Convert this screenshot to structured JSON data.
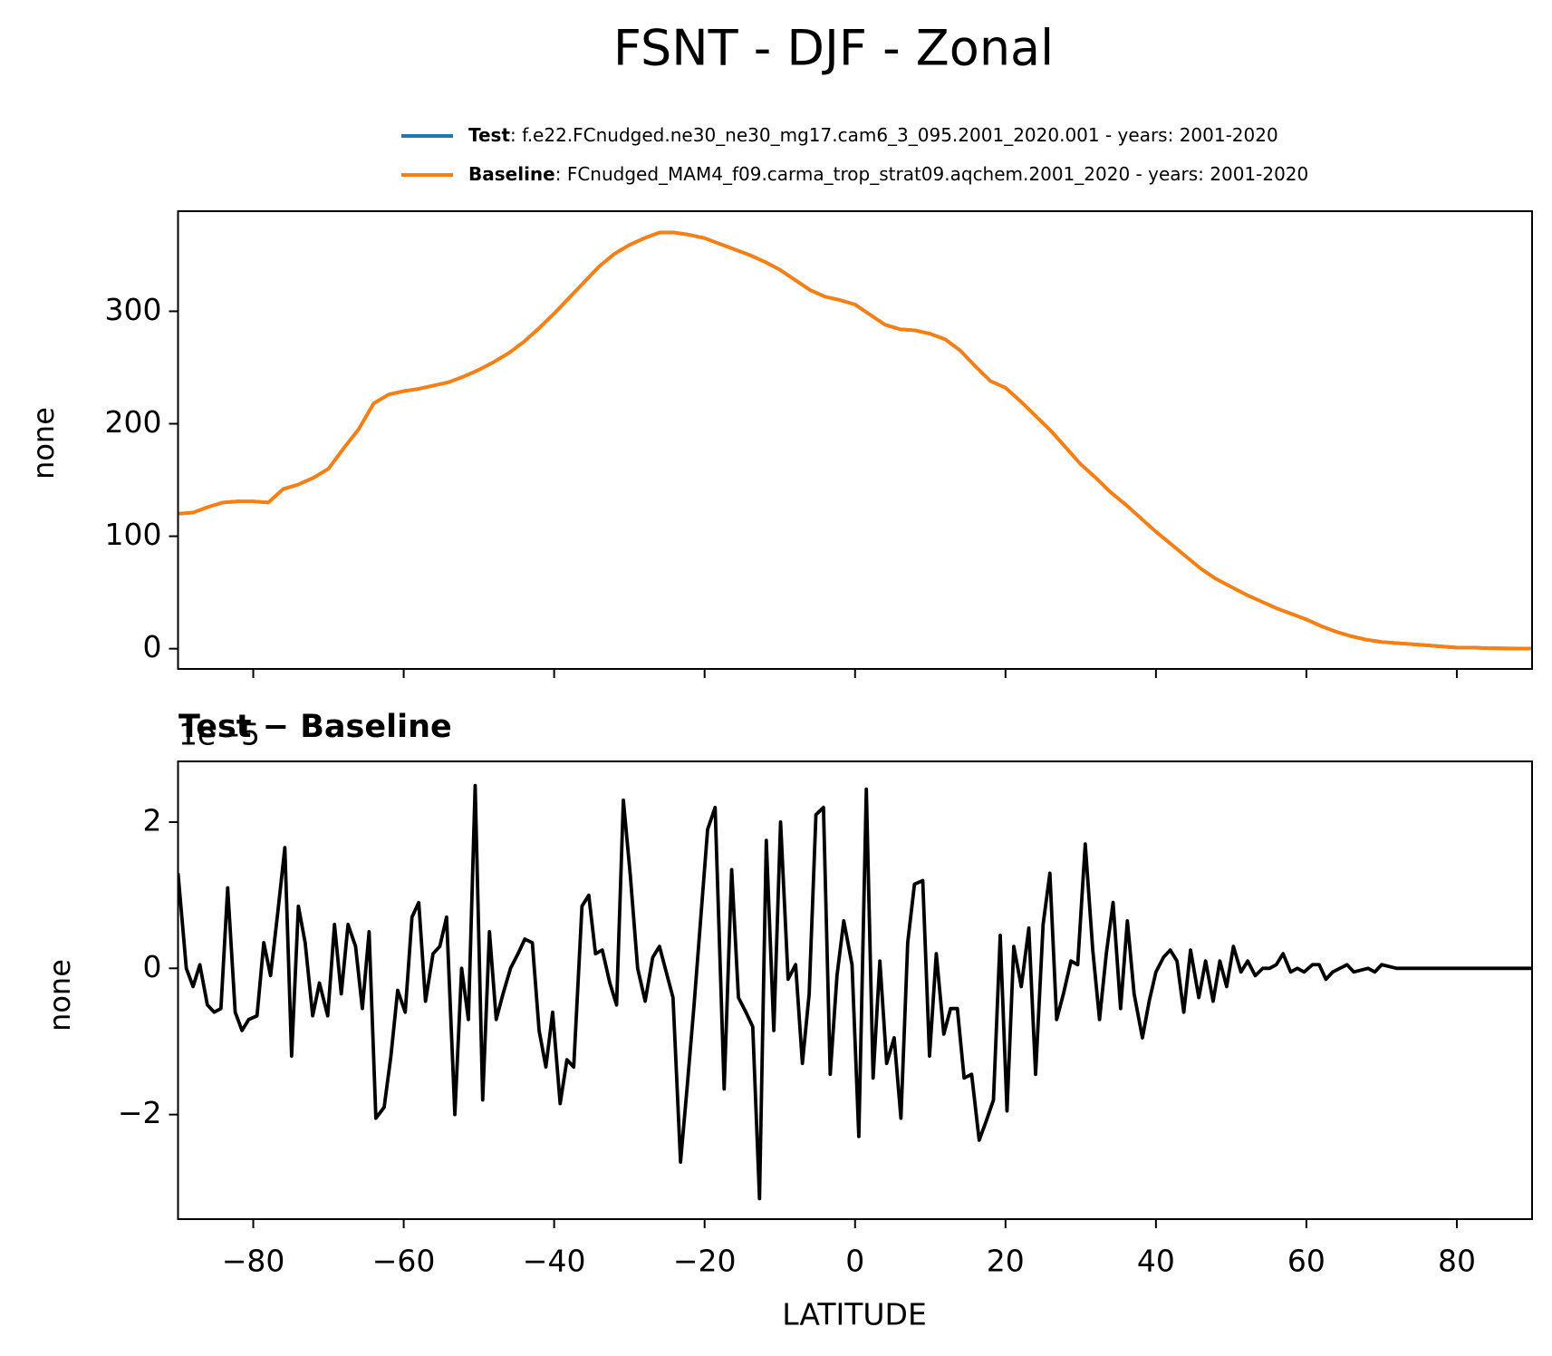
{
  "chart_data": [
    {
      "type": "line",
      "title": "FSNT - DJF - Zonal",
      "ylabel": "none",
      "xlim": [
        -90,
        90
      ],
      "xticks": [
        -80,
        -60,
        -40,
        -20,
        0,
        20,
        40,
        60,
        80
      ],
      "ylim": [
        -18,
        389
      ],
      "yticks": [
        0,
        100,
        200,
        300
      ],
      "x": [
        -90,
        -88,
        -86,
        -84,
        -82,
        -80,
        -78,
        -76,
        -74,
        -72,
        -70,
        -68,
        -66,
        -64,
        -62,
        -60,
        -58,
        -56,
        -54,
        -52,
        -50,
        -48,
        -46,
        -44,
        -42,
        -40,
        -38,
        -36,
        -34,
        -32,
        -30,
        -28,
        -26,
        -24,
        -22,
        -20,
        -18,
        -16,
        -14,
        -12,
        -10,
        -8,
        -6,
        -4,
        -2,
        0,
        2,
        4,
        6,
        8,
        10,
        12,
        14,
        16,
        18,
        20,
        22,
        24,
        26,
        28,
        30,
        32,
        34,
        36,
        38,
        40,
        42,
        44,
        46,
        48,
        50,
        52,
        54,
        56,
        58,
        60,
        62,
        64,
        66,
        68,
        70,
        72,
        74,
        76,
        78,
        80,
        82,
        84,
        86,
        88,
        90
      ],
      "series": [
        {
          "name": "Test",
          "description": ": f.e22.FCnudged.ne30_ne30_mg17.cam6_3_095.2001_2020.001 - years: 2001-2020",
          "color": "#1f77b4",
          "values": [
            120,
            121,
            126,
            130,
            131,
            131,
            130,
            142,
            146,
            152,
            160,
            178,
            195,
            218,
            226,
            229,
            231,
            234,
            237,
            242,
            248,
            255,
            263,
            273,
            285,
            298,
            312,
            326,
            340,
            351,
            359,
            365,
            370,
            370,
            368,
            365,
            360,
            355,
            350,
            344,
            337,
            328,
            319,
            313,
            310,
            306,
            297,
            288,
            284,
            283,
            280,
            275,
            265,
            251,
            238,
            232,
            220,
            207,
            194,
            179,
            164,
            152,
            139,
            128,
            116,
            104,
            93,
            82,
            71,
            62,
            55,
            48,
            42,
            36,
            31,
            26,
            20,
            15,
            11,
            8,
            6,
            5,
            4,
            3,
            2,
            1,
            1,
            0.5,
            0.3,
            0.2,
            0.2
          ]
        },
        {
          "name": "Baseline",
          "description": ": FCnudged_MAM4_f09.carma_trop_strat09.aqchem.2001_2020 - years: 2001-2020",
          "color": "#ff7f0e",
          "values": [
            120,
            121,
            126,
            130,
            131,
            131,
            130,
            142,
            146,
            152,
            160,
            178,
            195,
            218,
            226,
            229,
            231,
            234,
            237,
            242,
            248,
            255,
            263,
            273,
            285,
            298,
            312,
            326,
            340,
            351,
            359,
            365,
            370,
            370,
            368,
            365,
            360,
            355,
            350,
            344,
            337,
            328,
            319,
            313,
            310,
            306,
            297,
            288,
            284,
            283,
            280,
            275,
            265,
            251,
            238,
            232,
            220,
            207,
            194,
            179,
            164,
            152,
            139,
            128,
            116,
            104,
            93,
            82,
            71,
            62,
            55,
            48,
            42,
            36,
            31,
            26,
            20,
            15,
            11,
            8,
            6,
            5,
            4,
            3,
            2,
            1,
            1,
            0.5,
            0.3,
            0.2,
            0.2
          ]
        }
      ]
    },
    {
      "type": "line",
      "title": "Test − Baseline",
      "offset_text": "1e−5",
      "ylabel": "none",
      "xlabel": "LATITUDE",
      "xlim": [
        -90,
        90
      ],
      "xticks": [
        {
          "value": -80,
          "label": "−80"
        },
        {
          "value": -60,
          "label": "−60"
        },
        {
          "value": -40,
          "label": "−40"
        },
        {
          "value": -20,
          "label": "−20"
        },
        0,
        20,
        40,
        60,
        80
      ],
      "ylim": [
        -3.43,
        2.83
      ],
      "yticks": [
        {
          "value": -2,
          "label": "−2"
        },
        0,
        2
      ],
      "x": [
        -90,
        -88.9,
        -88.0,
        -87.1,
        -86.1,
        -85.2,
        -84.3,
        -83.4,
        -82.4,
        -81.5,
        -80.6,
        -79.5,
        -78.6,
        -77.7,
        -76.7,
        -75.8,
        -74.9,
        -74.0,
        -73.1,
        -72.1,
        -71.2,
        -70.1,
        -69.2,
        -68.3,
        -67.4,
        -66.4,
        -65.5,
        -64.6,
        -63.7,
        -62.6,
        -61.7,
        -60.8,
        -59.8,
        -58.9,
        -58.0,
        -57.1,
        -56.1,
        -55.2,
        -54.3,
        -53.2,
        -52.3,
        -51.4,
        -50.5,
        -49.5,
        -48.6,
        -47.7,
        -46.8,
        -45.8,
        -44.8,
        -43.9,
        -42.9,
        -42.0,
        -41.1,
        -40.2,
        -39.2,
        -38.3,
        -37.4,
        -36.3,
        -35.4,
        -34.5,
        -33.6,
        -32.6,
        -31.7,
        -30.8,
        -29.9,
        -28.9,
        -27.9,
        -26.9,
        -26.0,
        -25.1,
        -24.2,
        -23.2,
        -22.3,
        -21.4,
        -20.5,
        -19.6,
        -18.6,
        -17.4,
        -16.4,
        -15.5,
        -14.5,
        -13.6,
        -12.7,
        -11.8,
        -10.8,
        -9.9,
        -8.9,
        -7.9,
        -7.0,
        -6.1,
        -5.2,
        -4.2,
        -3.3,
        -2.4,
        -1.5,
        -0.4,
        0.5,
        1.5,
        2.4,
        3.3,
        4.2,
        5.2,
        6.1,
        7.0,
        7.9,
        9.0,
        9.9,
        10.8,
        11.8,
        12.7,
        13.6,
        14.5,
        15.5,
        16.5,
        17.4,
        18.4,
        19.3,
        20.2,
        21.1,
        22.1,
        23.1,
        24.0,
        25.0,
        25.9,
        26.8,
        27.7,
        28.7,
        29.6,
        30.6,
        31.6,
        32.5,
        33.4,
        34.3,
        35.3,
        36.2,
        37.1,
        38.2,
        39.1,
        40.0,
        41.0,
        41.9,
        42.8,
        43.7,
        44.6,
        45.7,
        46.6,
        47.6,
        48.5,
        49.4,
        50.3,
        51.3,
        52.2,
        53.2,
        54.2,
        55.1,
        56.0,
        56.9,
        57.9,
        58.8,
        59.7,
        60.8,
        61.7,
        62.6,
        63.5,
        65.4,
        66.3,
        68.2,
        69.1,
        70.0,
        72,
        75,
        78,
        81,
        84,
        87,
        90
      ],
      "series": [
        {
          "color": "#000000",
          "values": [
            1.3,
            0.0,
            -0.25,
            0.05,
            -0.5,
            -0.6,
            -0.55,
            1.1,
            -0.6,
            -0.85,
            -0.7,
            -0.65,
            0.35,
            -0.1,
            0.8,
            1.65,
            -1.2,
            0.85,
            0.35,
            -0.65,
            -0.2,
            -0.65,
            0.6,
            -0.35,
            0.6,
            0.3,
            -0.55,
            0.5,
            -2.05,
            -1.9,
            -1.2,
            -0.3,
            -0.6,
            0.7,
            0.9,
            -0.45,
            0.2,
            0.3,
            0.7,
            -2.0,
            0.0,
            -0.7,
            2.5,
            -1.8,
            0.5,
            -0.7,
            -0.35,
            0.0,
            0.2,
            0.4,
            0.35,
            -0.85,
            -1.35,
            -0.6,
            -1.85,
            -1.25,
            -1.35,
            0.85,
            1.0,
            0.2,
            0.25,
            -0.2,
            -0.5,
            2.3,
            1.3,
            0.0,
            -0.45,
            0.15,
            0.3,
            -0.05,
            -0.4,
            -2.65,
            -1.6,
            -0.5,
            0.7,
            1.9,
            2.2,
            -1.65,
            1.35,
            -0.4,
            -0.6,
            -0.8,
            -3.15,
            1.75,
            -0.85,
            2.0,
            -0.15,
            0.05,
            -1.3,
            -0.35,
            2.1,
            2.2,
            -1.45,
            -0.1,
            0.65,
            0.05,
            -2.3,
            2.45,
            -1.5,
            0.1,
            -1.3,
            -0.95,
            -2.05,
            0.35,
            1.15,
            1.2,
            -1.2,
            0.2,
            -0.9,
            -0.55,
            -0.55,
            -1.5,
            -1.45,
            -2.35,
            -2.1,
            -1.8,
            0.45,
            -1.95,
            0.3,
            -0.25,
            0.55,
            -1.45,
            0.6,
            1.3,
            -0.7,
            -0.35,
            0.1,
            0.05,
            1.7,
            0.25,
            -0.7,
            0.2,
            0.9,
            -0.55,
            0.65,
            -0.35,
            -0.95,
            -0.45,
            -0.05,
            0.15,
            0.25,
            0.1,
            -0.6,
            0.25,
            -0.4,
            0.1,
            -0.45,
            0.1,
            -0.25,
            0.3,
            -0.05,
            0.1,
            -0.1,
            0.0,
            0.0,
            0.05,
            0.2,
            -0.05,
            0.0,
            -0.05,
            0.05,
            0.05,
            -0.15,
            -0.05,
            0.05,
            -0.05,
            0.0,
            -0.05,
            0.05,
            0.0,
            0.0,
            0.0,
            0.0,
            0.0,
            0.0,
            0.0
          ]
        }
      ]
    }
  ]
}
